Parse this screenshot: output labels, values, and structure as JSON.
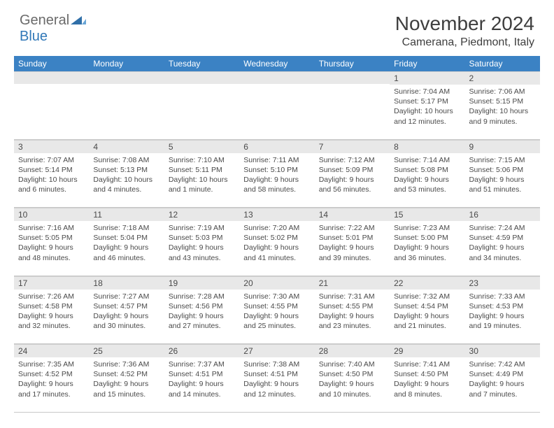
{
  "logo": {
    "word1": "General",
    "word2": "Blue"
  },
  "title": "November 2024",
  "location": "Camerana, Piedmont, Italy",
  "colors": {
    "header_bg": "#3b82c4",
    "header_text": "#ffffff",
    "band_bg": "#e8e8e8",
    "text": "#4a4a4a",
    "border": "#c8c8c8",
    "logo_blue": "#3178b8",
    "logo_gray": "#6a6a6a"
  },
  "day_names": [
    "Sunday",
    "Monday",
    "Tuesday",
    "Wednesday",
    "Thursday",
    "Friday",
    "Saturday"
  ],
  "weeks": [
    [
      null,
      null,
      null,
      null,
      null,
      {
        "d": "1",
        "sr": "7:04 AM",
        "ss": "5:17 PM",
        "dl": "10 hours and 12 minutes."
      },
      {
        "d": "2",
        "sr": "7:06 AM",
        "ss": "5:15 PM",
        "dl": "10 hours and 9 minutes."
      }
    ],
    [
      {
        "d": "3",
        "sr": "7:07 AM",
        "ss": "5:14 PM",
        "dl": "10 hours and 6 minutes."
      },
      {
        "d": "4",
        "sr": "7:08 AM",
        "ss": "5:13 PM",
        "dl": "10 hours and 4 minutes."
      },
      {
        "d": "5",
        "sr": "7:10 AM",
        "ss": "5:11 PM",
        "dl": "10 hours and 1 minute."
      },
      {
        "d": "6",
        "sr": "7:11 AM",
        "ss": "5:10 PM",
        "dl": "9 hours and 58 minutes."
      },
      {
        "d": "7",
        "sr": "7:12 AM",
        "ss": "5:09 PM",
        "dl": "9 hours and 56 minutes."
      },
      {
        "d": "8",
        "sr": "7:14 AM",
        "ss": "5:08 PM",
        "dl": "9 hours and 53 minutes."
      },
      {
        "d": "9",
        "sr": "7:15 AM",
        "ss": "5:06 PM",
        "dl": "9 hours and 51 minutes."
      }
    ],
    [
      {
        "d": "10",
        "sr": "7:16 AM",
        "ss": "5:05 PM",
        "dl": "9 hours and 48 minutes."
      },
      {
        "d": "11",
        "sr": "7:18 AM",
        "ss": "5:04 PM",
        "dl": "9 hours and 46 minutes."
      },
      {
        "d": "12",
        "sr": "7:19 AM",
        "ss": "5:03 PM",
        "dl": "9 hours and 43 minutes."
      },
      {
        "d": "13",
        "sr": "7:20 AM",
        "ss": "5:02 PM",
        "dl": "9 hours and 41 minutes."
      },
      {
        "d": "14",
        "sr": "7:22 AM",
        "ss": "5:01 PM",
        "dl": "9 hours and 39 minutes."
      },
      {
        "d": "15",
        "sr": "7:23 AM",
        "ss": "5:00 PM",
        "dl": "9 hours and 36 minutes."
      },
      {
        "d": "16",
        "sr": "7:24 AM",
        "ss": "4:59 PM",
        "dl": "9 hours and 34 minutes."
      }
    ],
    [
      {
        "d": "17",
        "sr": "7:26 AM",
        "ss": "4:58 PM",
        "dl": "9 hours and 32 minutes."
      },
      {
        "d": "18",
        "sr": "7:27 AM",
        "ss": "4:57 PM",
        "dl": "9 hours and 30 minutes."
      },
      {
        "d": "19",
        "sr": "7:28 AM",
        "ss": "4:56 PM",
        "dl": "9 hours and 27 minutes."
      },
      {
        "d": "20",
        "sr": "7:30 AM",
        "ss": "4:55 PM",
        "dl": "9 hours and 25 minutes."
      },
      {
        "d": "21",
        "sr": "7:31 AM",
        "ss": "4:55 PM",
        "dl": "9 hours and 23 minutes."
      },
      {
        "d": "22",
        "sr": "7:32 AM",
        "ss": "4:54 PM",
        "dl": "9 hours and 21 minutes."
      },
      {
        "d": "23",
        "sr": "7:33 AM",
        "ss": "4:53 PM",
        "dl": "9 hours and 19 minutes."
      }
    ],
    [
      {
        "d": "24",
        "sr": "7:35 AM",
        "ss": "4:52 PM",
        "dl": "9 hours and 17 minutes."
      },
      {
        "d": "25",
        "sr": "7:36 AM",
        "ss": "4:52 PM",
        "dl": "9 hours and 15 minutes."
      },
      {
        "d": "26",
        "sr": "7:37 AM",
        "ss": "4:51 PM",
        "dl": "9 hours and 14 minutes."
      },
      {
        "d": "27",
        "sr": "7:38 AM",
        "ss": "4:51 PM",
        "dl": "9 hours and 12 minutes."
      },
      {
        "d": "28",
        "sr": "7:40 AM",
        "ss": "4:50 PM",
        "dl": "9 hours and 10 minutes."
      },
      {
        "d": "29",
        "sr": "7:41 AM",
        "ss": "4:50 PM",
        "dl": "9 hours and 8 minutes."
      },
      {
        "d": "30",
        "sr": "7:42 AM",
        "ss": "4:49 PM",
        "dl": "9 hours and 7 minutes."
      }
    ]
  ],
  "labels": {
    "sunrise": "Sunrise:",
    "sunset": "Sunset:",
    "daylight": "Daylight:"
  }
}
